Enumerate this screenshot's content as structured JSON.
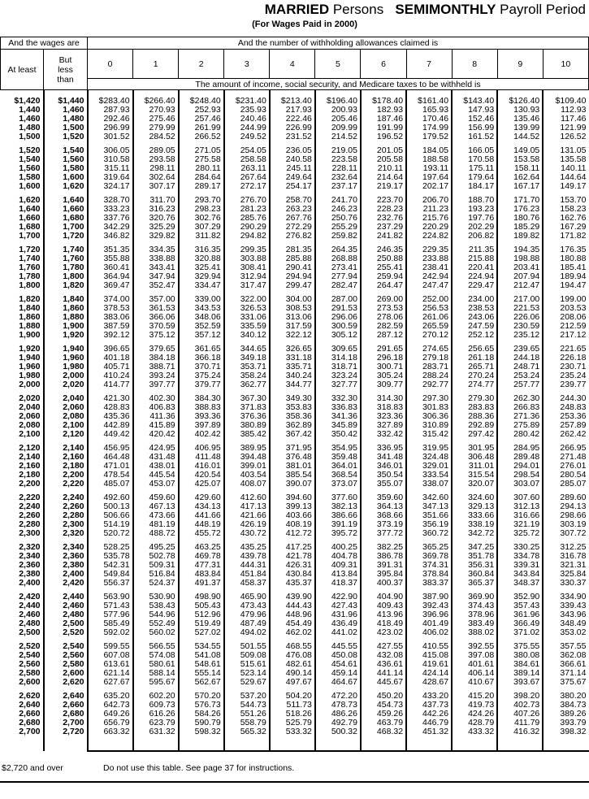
{
  "header": {
    "title_bold_1": "MARRIED",
    "title_1": "Persons",
    "title_bold_2": "SEMIMONTHLY",
    "title_2": "Payroll Period",
    "subtitle": "(For Wages Paid in 2000)"
  },
  "table": {
    "wages_header": "And the wages are",
    "allowances_header": "And the number of withholding allowances claimed is",
    "at_least": "At least",
    "but_less_than": "But less than",
    "allowances": [
      "0",
      "1",
      "2",
      "3",
      "4",
      "5",
      "6",
      "7",
      "8",
      "9",
      "10"
    ],
    "amount_header": "The amount of income, social security, and Medicare taxes to be withheld is",
    "rows": [
      [
        "$1,420",
        "$1,440",
        "$283.40",
        "$266.40",
        "$248.40",
        "$231.40",
        "$213.40",
        "$196.40",
        "$178.40",
        "$161.40",
        "$143.40",
        "$126.40",
        "$109.40"
      ],
      [
        "1,440",
        "1,460",
        "287.93",
        "270.93",
        "252.93",
        "235.93",
        "217.93",
        "200.93",
        "182.93",
        "165.93",
        "147.93",
        "130.93",
        "112.93"
      ],
      [
        "1,460",
        "1,480",
        "292.46",
        "275.46",
        "257.46",
        "240.46",
        "222.46",
        "205.46",
        "187.46",
        "170.46",
        "152.46",
        "135.46",
        "117.46"
      ],
      [
        "1,480",
        "1,500",
        "296.99",
        "279.99",
        "261.99",
        "244.99",
        "226.99",
        "209.99",
        "191.99",
        "174.99",
        "156.99",
        "139.99",
        "121.99"
      ],
      [
        "1,500",
        "1,520",
        "301.52",
        "284.52",
        "266.52",
        "249.52",
        "231.52",
        "214.52",
        "196.52",
        "179.52",
        "161.52",
        "144.52",
        "126.52"
      ],
      [
        "1,520",
        "1,540",
        "306.05",
        "289.05",
        "271.05",
        "254.05",
        "236.05",
        "219.05",
        "201.05",
        "184.05",
        "166.05",
        "149.05",
        "131.05"
      ],
      [
        "1,540",
        "1,560",
        "310.58",
        "293.58",
        "275.58",
        "258.58",
        "240.58",
        "223.58",
        "205.58",
        "188.58",
        "170.58",
        "153.58",
        "135.58"
      ],
      [
        "1,560",
        "1,580",
        "315.11",
        "298.11",
        "280.11",
        "263.11",
        "245.11",
        "228.11",
        "210.11",
        "193.11",
        "175.11",
        "158.11",
        "140.11"
      ],
      [
        "1,580",
        "1,600",
        "319.64",
        "302.64",
        "284.64",
        "267.64",
        "249.64",
        "232.64",
        "214.64",
        "197.64",
        "179.64",
        "162.64",
        "144.64"
      ],
      [
        "1,600",
        "1,620",
        "324.17",
        "307.17",
        "289.17",
        "272.17",
        "254.17",
        "237.17",
        "219.17",
        "202.17",
        "184.17",
        "167.17",
        "149.17"
      ],
      [
        "1,620",
        "1,640",
        "328.70",
        "311.70",
        "293.70",
        "276.70",
        "258.70",
        "241.70",
        "223.70",
        "206.70",
        "188.70",
        "171.70",
        "153.70"
      ],
      [
        "1,640",
        "1,660",
        "333.23",
        "316.23",
        "298.23",
        "281.23",
        "263.23",
        "246.23",
        "228.23",
        "211.23",
        "193.23",
        "176.23",
        "158.23"
      ],
      [
        "1,660",
        "1,680",
        "337.76",
        "320.76",
        "302.76",
        "285.76",
        "267.76",
        "250.76",
        "232.76",
        "215.76",
        "197.76",
        "180.76",
        "162.76"
      ],
      [
        "1,680",
        "1,700",
        "342.29",
        "325.29",
        "307.29",
        "290.29",
        "272.29",
        "255.29",
        "237.29",
        "220.29",
        "202.29",
        "185.29",
        "167.29"
      ],
      [
        "1,700",
        "1,720",
        "346.82",
        "329.82",
        "311.82",
        "294.82",
        "276.82",
        "259.82",
        "241.82",
        "224.82",
        "206.82",
        "189.82",
        "171.82"
      ],
      [
        "1,720",
        "1,740",
        "351.35",
        "334.35",
        "316.35",
        "299.35",
        "281.35",
        "264.35",
        "246.35",
        "229.35",
        "211.35",
        "194.35",
        "176.35"
      ],
      [
        "1,740",
        "1,760",
        "355.88",
        "338.88",
        "320.88",
        "303.88",
        "285.88",
        "268.88",
        "250.88",
        "233.88",
        "215.88",
        "198.88",
        "180.88"
      ],
      [
        "1,760",
        "1,780",
        "360.41",
        "343.41",
        "325.41",
        "308.41",
        "290.41",
        "273.41",
        "255.41",
        "238.41",
        "220.41",
        "203.41",
        "185.41"
      ],
      [
        "1,780",
        "1,800",
        "364.94",
        "347.94",
        "329.94",
        "312.94",
        "294.94",
        "277.94",
        "259.94",
        "242.94",
        "224.94",
        "207.94",
        "189.94"
      ],
      [
        "1,800",
        "1,820",
        "369.47",
        "352.47",
        "334.47",
        "317.47",
        "299.47",
        "282.47",
        "264.47",
        "247.47",
        "229.47",
        "212.47",
        "194.47"
      ],
      [
        "1,820",
        "1,840",
        "374.00",
        "357.00",
        "339.00",
        "322.00",
        "304.00",
        "287.00",
        "269.00",
        "252.00",
        "234.00",
        "217.00",
        "199.00"
      ],
      [
        "1,840",
        "1,860",
        "378.53",
        "361.53",
        "343.53",
        "326.53",
        "308.53",
        "291.53",
        "273.53",
        "256.53",
        "238.53",
        "221.53",
        "203.53"
      ],
      [
        "1,860",
        "1,880",
        "383.06",
        "366.06",
        "348.06",
        "331.06",
        "313.06",
        "296.06",
        "278.06",
        "261.06",
        "243.06",
        "226.06",
        "208.06"
      ],
      [
        "1,880",
        "1,900",
        "387.59",
        "370.59",
        "352.59",
        "335.59",
        "317.59",
        "300.59",
        "282.59",
        "265.59",
        "247.59",
        "230.59",
        "212.59"
      ],
      [
        "1,900",
        "1,920",
        "392.12",
        "375.12",
        "357.12",
        "340.12",
        "322.12",
        "305.12",
        "287.12",
        "270.12",
        "252.12",
        "235.12",
        "217.12"
      ],
      [
        "1,920",
        "1,940",
        "396.65",
        "379.65",
        "361.65",
        "344.65",
        "326.65",
        "309.65",
        "291.65",
        "274.65",
        "256.65",
        "239.65",
        "221.65"
      ],
      [
        "1,940",
        "1,960",
        "401.18",
        "384.18",
        "366.18",
        "349.18",
        "331.18",
        "314.18",
        "296.18",
        "279.18",
        "261.18",
        "244.18",
        "226.18"
      ],
      [
        "1,960",
        "1,980",
        "405.71",
        "388.71",
        "370.71",
        "353.71",
        "335.71",
        "318.71",
        "300.71",
        "283.71",
        "265.71",
        "248.71",
        "230.71"
      ],
      [
        "1,980",
        "2,000",
        "410.24",
        "393.24",
        "375.24",
        "358.24",
        "340.24",
        "323.24",
        "305.24",
        "288.24",
        "270.24",
        "253.24",
        "235.24"
      ],
      [
        "2,000",
        "2,020",
        "414.77",
        "397.77",
        "379.77",
        "362.77",
        "344.77",
        "327.77",
        "309.77",
        "292.77",
        "274.77",
        "257.77",
        "239.77"
      ],
      [
        "2,020",
        "2,040",
        "421.30",
        "402.30",
        "384.30",
        "367.30",
        "349.30",
        "332.30",
        "314.30",
        "297.30",
        "279.30",
        "262.30",
        "244.30"
      ],
      [
        "2,040",
        "2,060",
        "428.83",
        "406.83",
        "388.83",
        "371.83",
        "353.83",
        "336.83",
        "318.83",
        "301.83",
        "283.83",
        "266.83",
        "248.83"
      ],
      [
        "2,060",
        "2,080",
        "435.36",
        "411.36",
        "393.36",
        "376.36",
        "358.36",
        "341.36",
        "323.36",
        "306.36",
        "288.36",
        "271.36",
        "253.36"
      ],
      [
        "2,080",
        "2,100",
        "442.89",
        "415.89",
        "397.89",
        "380.89",
        "362.89",
        "345.89",
        "327.89",
        "310.89",
        "292.89",
        "275.89",
        "257.89"
      ],
      [
        "2,100",
        "2,120",
        "449.42",
        "420.42",
        "402.42",
        "385.42",
        "367.42",
        "350.42",
        "332.42",
        "315.42",
        "297.42",
        "280.42",
        "262.42"
      ],
      [
        "2,120",
        "2,140",
        "456.95",
        "424.95",
        "406.95",
        "389.95",
        "371.95",
        "354.95",
        "336.95",
        "319.95",
        "301.95",
        "284.95",
        "266.95"
      ],
      [
        "2,140",
        "2,160",
        "464.48",
        "431.48",
        "411.48",
        "394.48",
        "376.48",
        "359.48",
        "341.48",
        "324.48",
        "306.48",
        "289.48",
        "271.48"
      ],
      [
        "2,160",
        "2,180",
        "471.01",
        "438.01",
        "416.01",
        "399.01",
        "381.01",
        "364.01",
        "346.01",
        "329.01",
        "311.01",
        "294.01",
        "276.01"
      ],
      [
        "2,180",
        "2,200",
        "478.54",
        "445.54",
        "420.54",
        "403.54",
        "385.54",
        "368.54",
        "350.54",
        "333.54",
        "315.54",
        "298.54",
        "280.54"
      ],
      [
        "2,200",
        "2,220",
        "485.07",
        "453.07",
        "425.07",
        "408.07",
        "390.07",
        "373.07",
        "355.07",
        "338.07",
        "320.07",
        "303.07",
        "285.07"
      ],
      [
        "2,220",
        "2,240",
        "492.60",
        "459.60",
        "429.60",
        "412.60",
        "394.60",
        "377.60",
        "359.60",
        "342.60",
        "324.60",
        "307.60",
        "289.60"
      ],
      [
        "2,240",
        "2,260",
        "500.13",
        "467.13",
        "434.13",
        "417.13",
        "399.13",
        "382.13",
        "364.13",
        "347.13",
        "329.13",
        "312.13",
        "294.13"
      ],
      [
        "2,260",
        "2,280",
        "506.66",
        "473.66",
        "441.66",
        "421.66",
        "403.66",
        "386.66",
        "368.66",
        "351.66",
        "333.66",
        "316.66",
        "298.66"
      ],
      [
        "2,280",
        "2,300",
        "514.19",
        "481.19",
        "448.19",
        "426.19",
        "408.19",
        "391.19",
        "373.19",
        "356.19",
        "338.19",
        "321.19",
        "303.19"
      ],
      [
        "2,300",
        "2,320",
        "520.72",
        "488.72",
        "455.72",
        "430.72",
        "412.72",
        "395.72",
        "377.72",
        "360.72",
        "342.72",
        "325.72",
        "307.72"
      ],
      [
        "2,320",
        "2,340",
        "528.25",
        "495.25",
        "463.25",
        "435.25",
        "417.25",
        "400.25",
        "382.25",
        "365.25",
        "347.25",
        "330.25",
        "312.25"
      ],
      [
        "2,340",
        "2,360",
        "535.78",
        "502.78",
        "469.78",
        "439.78",
        "421.78",
        "404.78",
        "386.78",
        "369.78",
        "351.78",
        "334.78",
        "316.78"
      ],
      [
        "2,360",
        "2,380",
        "542.31",
        "509.31",
        "477.31",
        "444.31",
        "426.31",
        "409.31",
        "391.31",
        "374.31",
        "356.31",
        "339.31",
        "321.31"
      ],
      [
        "2,380",
        "2,400",
        "549.84",
        "516.84",
        "483.84",
        "451.84",
        "430.84",
        "413.84",
        "395.84",
        "378.84",
        "360.84",
        "343.84",
        "325.84"
      ],
      [
        "2,400",
        "2,420",
        "556.37",
        "524.37",
        "491.37",
        "458.37",
        "435.37",
        "418.37",
        "400.37",
        "383.37",
        "365.37",
        "348.37",
        "330.37"
      ],
      [
        "2,420",
        "2,440",
        "563.90",
        "530.90",
        "498.90",
        "465.90",
        "439.90",
        "422.90",
        "404.90",
        "387.90",
        "369.90",
        "352.90",
        "334.90"
      ],
      [
        "2,440",
        "2,460",
        "571.43",
        "538.43",
        "505.43",
        "473.43",
        "444.43",
        "427.43",
        "409.43",
        "392.43",
        "374.43",
        "357.43",
        "339.43"
      ],
      [
        "2,460",
        "2,480",
        "577.96",
        "544.96",
        "512.96",
        "479.96",
        "448.96",
        "431.96",
        "413.96",
        "396.96",
        "378.96",
        "361.96",
        "343.96"
      ],
      [
        "2,480",
        "2,500",
        "585.49",
        "552.49",
        "519.49",
        "487.49",
        "454.49",
        "436.49",
        "418.49",
        "401.49",
        "383.49",
        "366.49",
        "348.49"
      ],
      [
        "2,500",
        "2,520",
        "592.02",
        "560.02",
        "527.02",
        "494.02",
        "462.02",
        "441.02",
        "423.02",
        "406.02",
        "388.02",
        "371.02",
        "353.02"
      ],
      [
        "2,520",
        "2,540",
        "599.55",
        "566.55",
        "534.55",
        "501.55",
        "468.55",
        "445.55",
        "427.55",
        "410.55",
        "392.55",
        "375.55",
        "357.55"
      ],
      [
        "2,540",
        "2,560",
        "607.08",
        "574.08",
        "541.08",
        "509.08",
        "476.08",
        "450.08",
        "432.08",
        "415.08",
        "397.08",
        "380.08",
        "362.08"
      ],
      [
        "2,560",
        "2,580",
        "613.61",
        "580.61",
        "548.61",
        "515.61",
        "482.61",
        "454.61",
        "436.61",
        "419.61",
        "401.61",
        "384.61",
        "366.61"
      ],
      [
        "2,580",
        "2,600",
        "621.14",
        "588.14",
        "555.14",
        "523.14",
        "490.14",
        "459.14",
        "441.14",
        "424.14",
        "406.14",
        "389.14",
        "371.14"
      ],
      [
        "2,600",
        "2,620",
        "627.67",
        "595.67",
        "562.67",
        "529.67",
        "497.67",
        "464.67",
        "445.67",
        "428.67",
        "410.67",
        "393.67",
        "375.67"
      ],
      [
        "2,620",
        "2,640",
        "635.20",
        "602.20",
        "570.20",
        "537.20",
        "504.20",
        "472.20",
        "450.20",
        "433.20",
        "415.20",
        "398.20",
        "380.20"
      ],
      [
        "2,640",
        "2,660",
        "642.73",
        "609.73",
        "576.73",
        "544.73",
        "511.73",
        "478.73",
        "454.73",
        "437.73",
        "419.73",
        "402.73",
        "384.73"
      ],
      [
        "2,660",
        "2,680",
        "649.26",
        "616.26",
        "584.26",
        "551.26",
        "518.26",
        "486.26",
        "459.26",
        "442.26",
        "424.26",
        "407.26",
        "389.26"
      ],
      [
        "2,680",
        "2,700",
        "656.79",
        "623.79",
        "590.79",
        "558.79",
        "525.79",
        "492.79",
        "463.79",
        "446.79",
        "428.79",
        "411.79",
        "393.79"
      ],
      [
        "2,700",
        "2,720",
        "663.32",
        "631.32",
        "598.32",
        "565.32",
        "533.32",
        "500.32",
        "468.32",
        "451.32",
        "433.32",
        "416.32",
        "398.32"
      ]
    ]
  },
  "footer": {
    "over_label": "$2,720 and over",
    "note": "Do not use this table. See page 37 for instructions."
  }
}
